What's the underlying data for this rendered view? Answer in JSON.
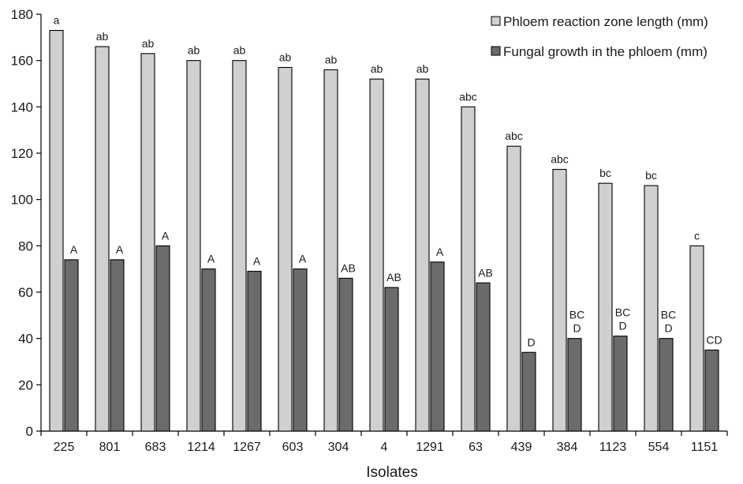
{
  "chart_data": {
    "type": "bar",
    "xlabel": "Isolates",
    "ylabel": "",
    "ylim": [
      0,
      180
    ],
    "yticks": [
      "0",
      "20",
      "40",
      "60",
      "80",
      "100",
      "120",
      "140",
      "160",
      "180"
    ],
    "grid": false,
    "legend_position": "top-right",
    "categories": [
      "225",
      "801",
      "683",
      "1214",
      "1267",
      "603",
      "304",
      "4",
      "1291",
      "63",
      "439",
      "384",
      "1123",
      "554",
      "1151"
    ],
    "series": [
      {
        "name": "Phloem reaction zone length (mm)",
        "color": "#d0d0d0",
        "values": [
          173,
          166,
          163,
          160,
          160,
          157,
          156,
          152,
          152,
          140,
          123,
          113,
          107,
          106,
          80
        ],
        "labels": [
          "a",
          "ab",
          "ab",
          "ab",
          "ab",
          "ab",
          "ab",
          "ab",
          "ab",
          "abc",
          "abc",
          "abc",
          "bc",
          "bc",
          "c"
        ]
      },
      {
        "name": "Fungal growth in the phloem (mm)",
        "color": "#6b6b6b",
        "values": [
          74,
          74,
          80,
          70,
          69,
          70,
          66,
          62,
          73,
          64,
          34,
          40,
          41,
          40,
          35
        ],
        "labels": [
          [
            "A"
          ],
          [
            "A"
          ],
          [
            "A"
          ],
          [
            "A"
          ],
          [
            "A"
          ],
          [
            "A"
          ],
          [
            "AB"
          ],
          [
            "AB"
          ],
          [
            "A"
          ],
          [
            "AB"
          ],
          [
            "D"
          ],
          [
            "BC",
            "D"
          ],
          [
            "BC",
            "D"
          ],
          [
            "BC",
            "D"
          ],
          [
            "CD"
          ]
        ]
      }
    ]
  }
}
